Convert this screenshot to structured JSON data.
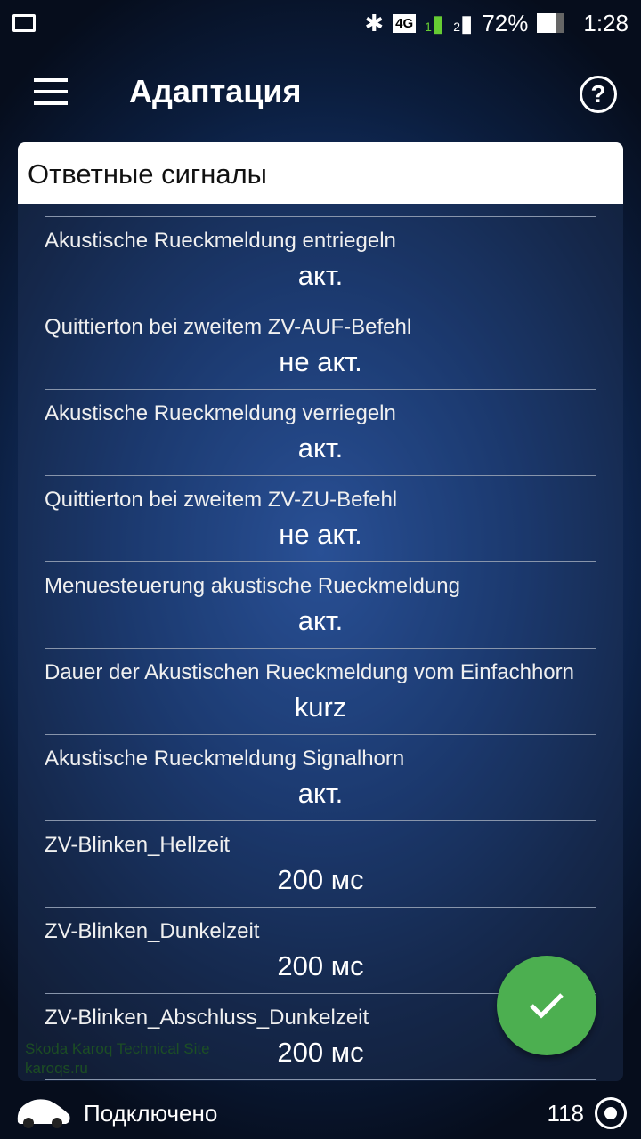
{
  "status": {
    "battery": "72%",
    "time": "1:28",
    "network": "4G",
    "sim1": "1",
    "sim2": "2"
  },
  "appbar": {
    "title": "Адаптация"
  },
  "card": {
    "header": "Ответные сигналы",
    "items": [
      {
        "label": "Akustische Rueckmeldung entriegeln",
        "value": "акт."
      },
      {
        "label": "Quittierton bei zweitem ZV-AUF-Befehl",
        "value": "не акт."
      },
      {
        "label": "Akustische Rueckmeldung verriegeln",
        "value": "акт."
      },
      {
        "label": "Quittierton bei zweitem ZV-ZU-Befehl",
        "value": "не акт."
      },
      {
        "label": "Menuesteuerung akustische Rueckmeldung",
        "value": "акт."
      },
      {
        "label": "Dauer der Akustischen Rueckmeldung vom Einfachhorn",
        "value": "kurz"
      },
      {
        "label": "Akustische Rueckmeldung Signalhorn",
        "value": "акт."
      },
      {
        "label": "ZV-Blinken_Hellzeit",
        "value": "200 мс"
      },
      {
        "label": "ZV-Blinken_Dunkelzeit",
        "value": "200 мс"
      },
      {
        "label": "ZV-Blinken_Abschluss_Dunkelzeit",
        "value": "200 мс"
      }
    ]
  },
  "watermark": {
    "line1": "Skoda Karoq Technical Site",
    "line2": "karoqs.ru"
  },
  "footer": {
    "status": "Подключено",
    "count": "118"
  },
  "colors": {
    "fab": "#4caf50"
  }
}
